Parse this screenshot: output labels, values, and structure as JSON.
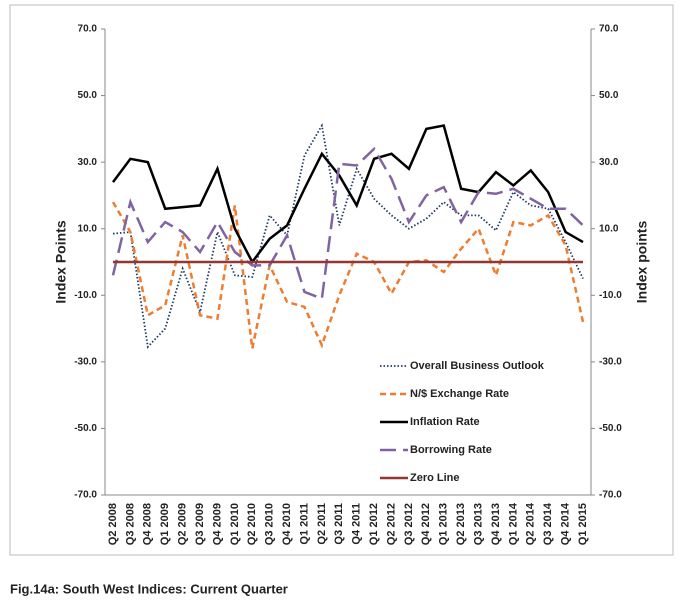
{
  "chart_data": {
    "type": "line",
    "caption": "Fig.14a: South West  Indices: Current Quarter",
    "ylabel": "Index Points",
    "y2label": "Index points",
    "categories": [
      "Q2 2008",
      "Q3 2008",
      "Q4 2008",
      "Q1 2009",
      "Q2 2009",
      "Q3 2009",
      "Q4 2009",
      "Q1 2010",
      "Q2 2010",
      "Q3 2010",
      "Q4 2010",
      "Q1 2011",
      "Q2 2011",
      "Q3 2011",
      "Q4 2011",
      "Q1 2012",
      "Q2 2012",
      "Q3 2012",
      "Q4 2012",
      "Q1 2013",
      "Q2 2013",
      "Q3 2013",
      "Q4 2013",
      "Q1 2014",
      "Q2 2014",
      "Q3 2014",
      "Q4 2014",
      "Q1 2015"
    ],
    "ylim": [
      -70,
      70
    ],
    "yticks": [
      {
        "value": -70,
        "label": "-70.0"
      },
      {
        "value": -50,
        "label": "-50.0"
      },
      {
        "value": -30,
        "label": "-30.0"
      },
      {
        "value": -10,
        "label": "-10.0"
      },
      {
        "value": 10,
        "label": "10.0"
      },
      {
        "value": 30,
        "label": "30.0"
      },
      {
        "value": 50,
        "label": "50.0"
      },
      {
        "value": 70,
        "label": "70.0"
      }
    ],
    "y2lim": [
      -70,
      70
    ],
    "y2ticks": [
      {
        "value": -70,
        "label": "-70.0"
      },
      {
        "value": -50,
        "label": "-50.0"
      },
      {
        "value": -30,
        "label": "-30.0"
      },
      {
        "value": -10,
        "label": "-10.0"
      },
      {
        "value": 10,
        "label": "10.0"
      },
      {
        "value": 30,
        "label": "30.0"
      },
      {
        "value": 50,
        "label": "50.0"
      },
      {
        "value": 70,
        "label": "70.0"
      }
    ],
    "series": [
      {
        "name": "Overall Business Outlook",
        "color": "#1f3864",
        "line_style": "dotted",
        "values": [
          8.5,
          9,
          -25.5,
          -20,
          -2,
          -15,
          9,
          -4,
          -4.5,
          14,
          8,
          32,
          41,
          11,
          28,
          19,
          14,
          10,
          13,
          18,
          14,
          14,
          9.5,
          21,
          17,
          16,
          6,
          -5
        ]
      },
      {
        "name": "N/$ Exchange Rate",
        "color": "#ed7d31",
        "line_style": "dashed",
        "values": [
          18,
          9,
          -16,
          -13,
          8,
          -16,
          -17,
          17,
          -26,
          -1,
          -12,
          -13.5,
          -25,
          -10,
          2.5,
          0,
          -9.5,
          0,
          0.5,
          -3,
          4,
          10,
          -4,
          12,
          11,
          14,
          5,
          -18
        ]
      },
      {
        "name": "Inflation Rate",
        "color": "#000000",
        "line_style": "solid",
        "values": [
          24,
          31,
          30,
          16,
          16.5,
          17,
          28,
          10,
          0,
          7,
          11,
          22,
          32.5,
          26,
          17,
          31,
          32.5,
          28,
          40,
          41,
          22,
          21,
          27,
          23,
          27.5,
          21,
          9,
          6
        ]
      },
      {
        "name": "Borrowing Rate",
        "color": "#8064a2",
        "line_style": "longdash",
        "values": [
          -4,
          18,
          6,
          12,
          9,
          3,
          12,
          3,
          -1,
          -1,
          8,
          -9,
          -11,
          29.5,
          29,
          34,
          25,
          12,
          20,
          22.5,
          12,
          21,
          20.5,
          22,
          19,
          16,
          16,
          11
        ]
      },
      {
        "name": "Zero Line",
        "color": "#943634",
        "line_style": "solid",
        "values": [
          0,
          0,
          0,
          0,
          0,
          0,
          0,
          0,
          0,
          0,
          0,
          0,
          0,
          0,
          0,
          0,
          0,
          0,
          0,
          0,
          0,
          0,
          0,
          0,
          0,
          0,
          0,
          0
        ]
      }
    ]
  }
}
